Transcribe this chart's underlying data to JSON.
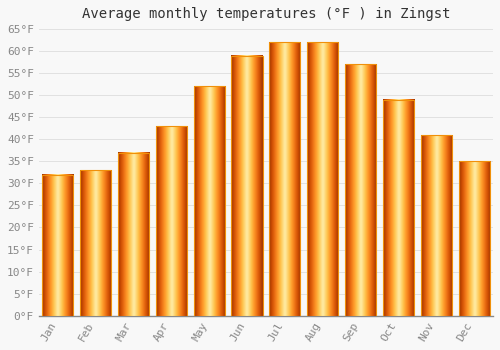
{
  "title": "Average monthly temperatures (°F ) in Zingst",
  "months": [
    "Jan",
    "Feb",
    "Mar",
    "Apr",
    "May",
    "Jun",
    "Jul",
    "Aug",
    "Sep",
    "Oct",
    "Nov",
    "Dec"
  ],
  "values": [
    32,
    33,
    37,
    43,
    52,
    59,
    62,
    62,
    57,
    49,
    41,
    35
  ],
  "bar_color_center": "#FFD050",
  "bar_color_edge": "#F0900A",
  "background_color": "#f8f8f8",
  "grid_color": "#dddddd",
  "ylim": [
    0,
    65
  ],
  "yticks": [
    0,
    5,
    10,
    15,
    20,
    25,
    30,
    35,
    40,
    45,
    50,
    55,
    60,
    65
  ],
  "title_fontsize": 10,
  "tick_fontsize": 8,
  "tick_color": "#888888",
  "font_family": "monospace",
  "bar_width": 0.82
}
